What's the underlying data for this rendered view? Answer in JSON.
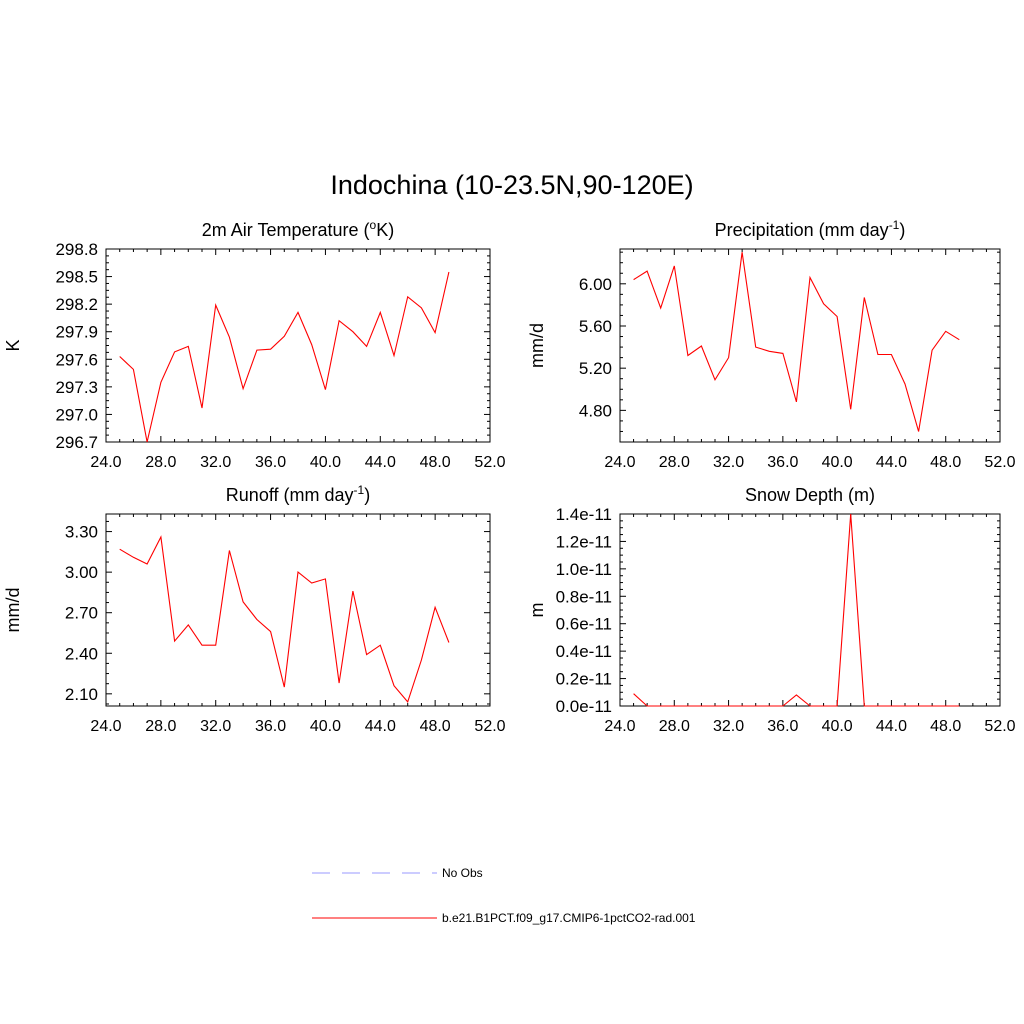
{
  "figure": {
    "title": "Indochina (10-23.5N,90-120E)"
  },
  "legend": {
    "entries": [
      {
        "label": "No Obs",
        "color": "#9999ff",
        "dash": true
      },
      {
        "label": "b.e21.B1PCT.f09_g17.CMIP6-1pctCO2-rad.001",
        "color": "#ff0000",
        "dash": false
      }
    ]
  },
  "chart_data": [
    {
      "type": "line",
      "title": "2m Air Temperature (oK)",
      "title_main": "2m Air Temperature (",
      "title_sup": "o",
      "title_end": "K)",
      "ylabel": "K",
      "xlim": [
        24,
        52
      ],
      "ylim": [
        296.7,
        298.8
      ],
      "xticks": [
        "24.0",
        "28.0",
        "32.0",
        "36.0",
        "40.0",
        "44.0",
        "48.0",
        "52.0"
      ],
      "yticks": [
        "296.7",
        "297.0",
        "297.3",
        "297.6",
        "297.9",
        "298.2",
        "298.5",
        "298.8"
      ],
      "x": [
        25,
        26,
        27,
        28,
        29,
        30,
        31,
        32,
        33,
        34,
        35,
        36,
        37,
        38,
        39,
        40,
        41,
        42,
        43,
        44,
        45,
        46,
        47,
        48,
        49
      ],
      "series": [
        {
          "color": "#ff0000",
          "values": [
            297.63,
            297.49,
            296.7,
            297.35,
            297.68,
            297.74,
            297.07,
            298.19,
            297.84,
            297.28,
            297.7,
            297.71,
            297.85,
            298.11,
            297.76,
            297.27,
            298.02,
            297.9,
            297.74,
            298.11,
            297.64,
            298.28,
            298.16,
            297.89,
            298.55
          ]
        }
      ]
    },
    {
      "type": "line",
      "title": "Precipitation (mm day-1)",
      "title_main": "Precipitation (mm day",
      "title_sup": "-1",
      "title_end": ")",
      "ylabel": "mm/d",
      "xlim": [
        24,
        52
      ],
      "ylim": [
        4.5,
        6.33
      ],
      "xticks": [
        "24.0",
        "28.0",
        "32.0",
        "36.0",
        "40.0",
        "44.0",
        "48.0",
        "52.0"
      ],
      "yticks": [
        "4.80",
        "5.20",
        "5.60",
        "6.00"
      ],
      "ytick_values": [
        4.8,
        5.2,
        5.6,
        6.0
      ],
      "x": [
        25,
        26,
        27,
        28,
        29,
        30,
        31,
        32,
        33,
        34,
        35,
        36,
        37,
        38,
        39,
        40,
        41,
        42,
        43,
        44,
        45,
        46,
        47,
        48,
        49
      ],
      "series": [
        {
          "color": "#ff0000",
          "values": [
            6.04,
            6.12,
            5.77,
            6.17,
            5.32,
            5.41,
            5.09,
            5.3,
            6.3,
            5.4,
            5.36,
            5.34,
            4.88,
            6.06,
            5.81,
            5.69,
            4.81,
            5.87,
            5.33,
            5.33,
            5.05,
            4.6,
            5.37,
            5.55,
            5.47
          ]
        }
      ]
    },
    {
      "type": "line",
      "title": "Runoff (mm day-1)",
      "title_main": "Runoff (mm day",
      "title_sup": "-1",
      "title_end": ")",
      "ylabel": "mm/d",
      "xlim": [
        24,
        52
      ],
      "ylim": [
        2.01,
        3.43
      ],
      "xticks": [
        "24.0",
        "28.0",
        "32.0",
        "36.0",
        "40.0",
        "44.0",
        "48.0",
        "52.0"
      ],
      "yticks": [
        "2.10",
        "2.40",
        "2.70",
        "3.00",
        "3.30"
      ],
      "ytick_values": [
        2.1,
        2.4,
        2.7,
        3.0,
        3.3
      ],
      "x": [
        25,
        26,
        27,
        28,
        29,
        30,
        31,
        32,
        33,
        34,
        35,
        36,
        37,
        38,
        39,
        40,
        41,
        42,
        43,
        44,
        45,
        46,
        47,
        48,
        49
      ],
      "series": [
        {
          "color": "#ff0000",
          "values": [
            3.17,
            3.11,
            3.06,
            3.26,
            2.49,
            2.61,
            2.46,
            2.46,
            3.16,
            2.78,
            2.65,
            2.56,
            2.15,
            3.0,
            2.92,
            2.95,
            2.18,
            2.86,
            2.39,
            2.46,
            2.16,
            2.04,
            2.35,
            2.74,
            2.48
          ]
        }
      ]
    },
    {
      "type": "line",
      "title": "Snow Depth (m)",
      "title_main": "Snow Depth (m)",
      "title_sup": "",
      "title_end": "",
      "ylabel": "m",
      "xlim": [
        24,
        52
      ],
      "ylim": [
        0,
        1.4e-11
      ],
      "xticks": [
        "24.0",
        "28.0",
        "32.0",
        "36.0",
        "40.0",
        "44.0",
        "48.0",
        "52.0"
      ],
      "yticks": [
        "0.0e-11",
        "0.2e-11",
        "0.4e-11",
        "0.6e-11",
        "0.8e-11",
        "1.0e-11",
        "1.2e-11",
        "1.4e-11"
      ],
      "ytick_values": [
        0,
        2e-12,
        4e-12,
        6e-12,
        8e-12,
        1e-11,
        1.2e-11,
        1.4e-11
      ],
      "x": [
        25,
        26,
        27,
        28,
        29,
        30,
        31,
        32,
        33,
        34,
        35,
        36,
        37,
        38,
        39,
        40,
        41,
        42,
        43,
        44,
        45,
        46,
        47,
        48,
        49
      ],
      "series": [
        {
          "color": "#ff0000",
          "values": [
            9e-13,
            0.0,
            0.0,
            0.0,
            0.0,
            0.0,
            0.0,
            0.0,
            0.0,
            0.0,
            0.0,
            0.0,
            8e-13,
            0.0,
            0.0,
            0.0,
            1.4e-11,
            0.0,
            0.0,
            0.0,
            0.0,
            0.0,
            0.0,
            0.0,
            0.0
          ]
        }
      ]
    }
  ]
}
